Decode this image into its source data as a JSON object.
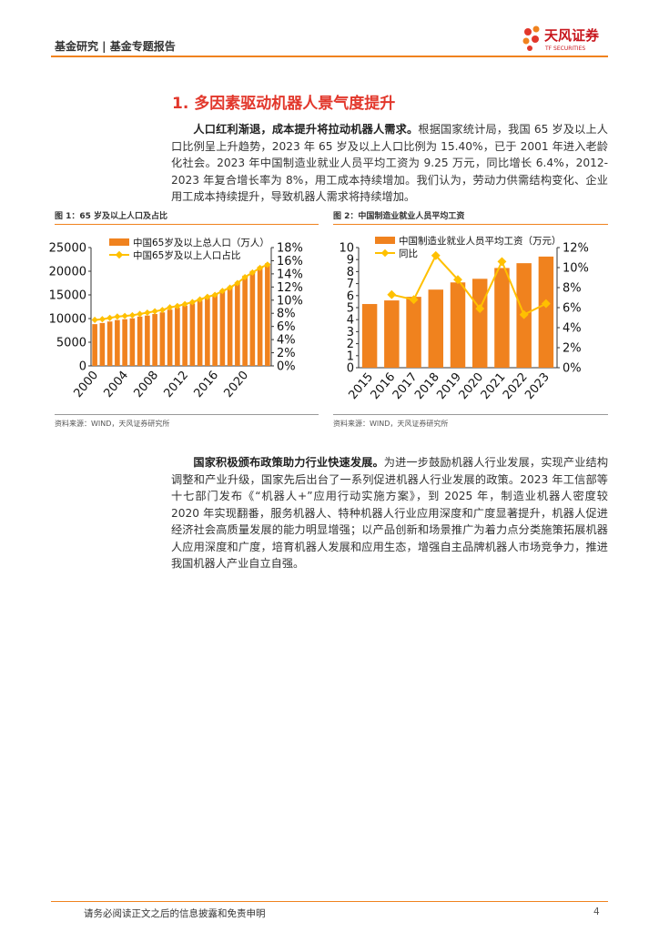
{
  "header": {
    "left": "基金研究 | 基金专题报告",
    "logo_cn": "天风证券",
    "logo_en": "TF SECURITIES"
  },
  "section_title": "1. 多因素驱动机器人景气度提升",
  "paragraphs": [
    {
      "lead": "人口红利渐退，成本提升将拉动机器人需求。",
      "text": "根据国家统计局，我国 65 岁及以上人口比例呈上升趋势，2023 年 65 岁及以上人口比例为 15.40%，已于 2001 年进入老龄化社会。2023 年中国制造业就业人员平均工资为 9.25 万元，同比增长 6.4%，2012-2023 年复合增长率为 8%，用工成本持续增加。我们认为，劳动力供需结构变化、企业用工成本持续提升，导致机器人需求将持续增加。"
    },
    {
      "lead": "国家积极颁布政策助力行业快速发展。",
      "text": "为进一步鼓励机器人行业发展，实现产业结构调整和产业升级，国家先后出台了一系列促进机器人行业发展的政策。2023 年工信部等十七部门发布《“机器人+”应用行动实施方案》，到 2025 年，制造业机器人密度较 2020 年实现翻番，服务机器人、特种机器人行业应用深度和广度显著提升，机器人促进经济社会高质量发展的能力明显增强；以产品创新和场景推广为着力点分类施策拓展机器人应用深度和广度，培育机器人发展和应用生态，增强自主品牌机器人市场竞争力，推进我国机器人产业自立自强。"
    }
  ],
  "chart_data": [
    {
      "type": "bar-line",
      "title": "图 1：65 岁及以上人口及占比",
      "source": "资料来源：WIND，天风证券研究所",
      "categories": [
        "2000",
        null,
        null,
        null,
        "2004",
        null,
        null,
        null,
        "2008",
        null,
        null,
        null,
        "2012",
        null,
        null,
        null,
        "2016",
        null,
        null,
        null,
        "2020",
        null,
        null,
        null
      ],
      "series": [
        {
          "name": "中国65岁及以上总人口（万人）",
          "color": "#f0821e",
          "values": [
            8821,
            9062,
            9377,
            9692,
            9857,
            10055,
            10419,
            10636,
            10956,
            11307,
            11894,
            12288,
            12714,
            13161,
            13755,
            14386,
            15003,
            15831,
            16658,
            17603,
            19064,
            20056,
            20978,
            21676
          ]
        },
        {
          "name": "中国65岁及以上人口占比",
          "color": "#ffc000",
          "axis": "y2",
          "values": [
            7.0,
            7.1,
            7.3,
            7.5,
            7.6,
            7.7,
            7.9,
            8.1,
            8.3,
            8.5,
            8.9,
            9.1,
            9.4,
            9.7,
            10.1,
            10.5,
            10.8,
            11.4,
            11.9,
            12.6,
            13.5,
            14.2,
            14.9,
            15.4
          ]
        }
      ],
      "ylim": [
        0,
        25000
      ],
      "yticks": [
        0,
        5000,
        10000,
        15000,
        20000,
        25000
      ],
      "y2lim": [
        0,
        18
      ],
      "y2ticks": [
        {
          "value": 0,
          "label": "0%"
        },
        {
          "value": 2,
          "label": "2%"
        },
        {
          "value": 4,
          "label": "4%"
        },
        {
          "value": 6,
          "label": "6%"
        },
        {
          "value": 8,
          "label": "8%"
        },
        {
          "value": 10,
          "label": "10%"
        },
        {
          "value": 12,
          "label": "12%"
        },
        {
          "value": 14,
          "label": "14%"
        },
        {
          "value": 16,
          "label": "16%"
        },
        {
          "value": 18,
          "label": "18%"
        }
      ],
      "grid": false
    },
    {
      "type": "bar-line",
      "title": "图 2：中国制造业就业人员平均工资",
      "source": "资料来源：WIND，天风证券研究所",
      "categories": [
        "2015",
        "2016",
        "2017",
        "2018",
        "2019",
        "2020",
        "2021",
        "2022",
        "2023"
      ],
      "series": [
        {
          "name": "中国制造业就业人员平均工资（万元）",
          "color": "#f0821e",
          "values": [
            5.3,
            5.6,
            5.9,
            6.5,
            7.1,
            7.4,
            8.3,
            8.7,
            9.25
          ]
        },
        {
          "name": "同比",
          "color": "#ffc000",
          "axis": "y2",
          "values": [
            null,
            7.3,
            6.8,
            11.2,
            8.8,
            5.9,
            10.6,
            5.3,
            6.4
          ]
        }
      ],
      "ylim": [
        0,
        10
      ],
      "yticks": [
        0,
        1,
        2,
        3,
        4,
        5,
        6,
        7,
        8,
        9,
        10
      ],
      "y2lim": [
        0,
        12
      ],
      "y2ticks": [
        {
          "value": 0,
          "label": "0%"
        },
        {
          "value": 2,
          "label": "2%"
        },
        {
          "value": 4,
          "label": "4%"
        },
        {
          "value": 6,
          "label": "6%"
        },
        {
          "value": 8,
          "label": "8%"
        },
        {
          "value": 10,
          "label": "10%"
        },
        {
          "value": 12,
          "label": "12%"
        }
      ],
      "grid": false
    }
  ],
  "footer": {
    "disclaimer": "请务必阅读正文之后的信息披露和免责申明",
    "page": 4
  }
}
